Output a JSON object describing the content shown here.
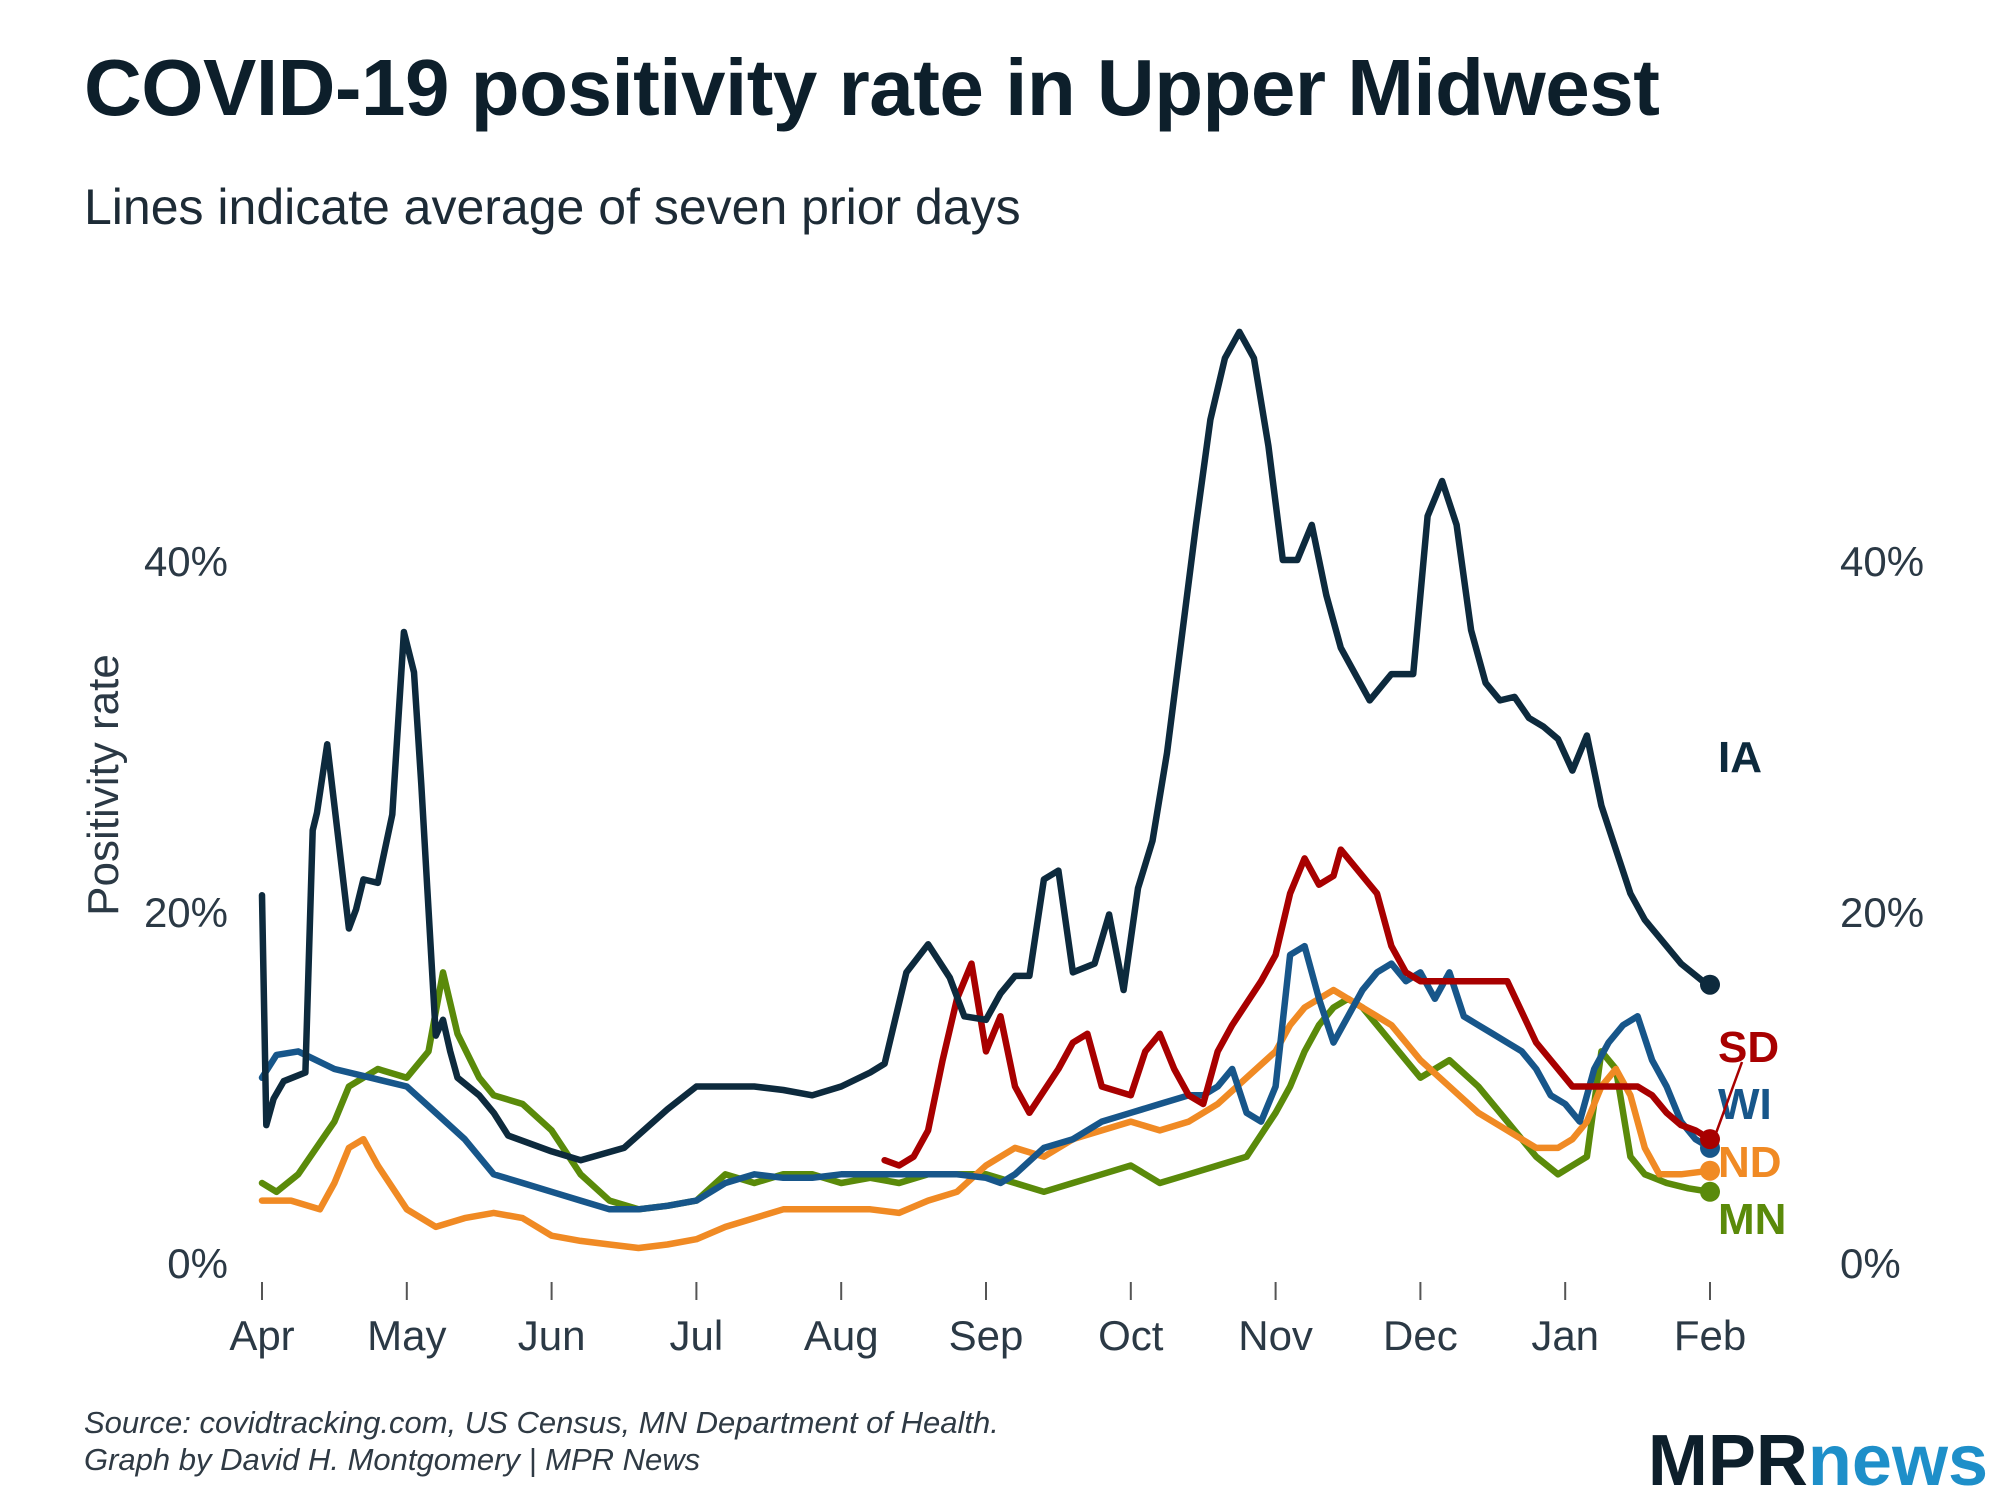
{
  "title": "COVID-19 positivity rate in Upper Midwest",
  "subtitle": "Lines indicate average of seven prior days",
  "source_line1": "Source: covidtracking.com, US Census, MN Department of Health.",
  "source_line2": "Graph by David H. Montgomery | MPR News",
  "logo": {
    "mpr": "MPR",
    "news": "news"
  },
  "chart_data": {
    "type": "line",
    "title": "COVID-19 positivity rate in Upper Midwest",
    "subtitle": "Lines indicate average of seven prior days",
    "xlabel": "",
    "ylabel": "Positivity rate",
    "x_tick_labels": [
      "Apr",
      "May",
      "Jun",
      "Jul",
      "Aug",
      "Sep",
      "Oct",
      "Nov",
      "Dec",
      "Jan",
      "Feb"
    ],
    "x_tick_positions": [
      0,
      1,
      2,
      3,
      4,
      5,
      6,
      7,
      8,
      9,
      10
    ],
    "y_ticks": [
      0,
      20,
      40
    ],
    "y_tick_labels": [
      "0%",
      "20%",
      "40%"
    ],
    "ylim": [
      -2,
      53
    ],
    "x_unit_note": "x values are months since Apr 1 (0 = Apr, 10 = Feb)",
    "grid": false,
    "legend": "direct labels at line ends (right)",
    "series": [
      {
        "name": "IA",
        "color": "#0d2a3d",
        "x": [
          0,
          0.03,
          0.08,
          0.15,
          0.3,
          0.35,
          0.38,
          0.45,
          0.6,
          0.65,
          0.7,
          0.8,
          0.9,
          0.98,
          1.05,
          1.1,
          1.2,
          1.25,
          1.3,
          1.35,
          1.5,
          1.6,
          1.7,
          2.0,
          2.2,
          2.5,
          2.8,
          3.0,
          3.2,
          3.4,
          3.6,
          3.8,
          4.0,
          4.2,
          4.3,
          4.45,
          4.6,
          4.75,
          4.85,
          5.0,
          5.1,
          5.2,
          5.3,
          5.4,
          5.5,
          5.6,
          5.75,
          5.85,
          5.95,
          6.05,
          6.15,
          6.25,
          6.35,
          6.45,
          6.55,
          6.65,
          6.75,
          6.85,
          6.95,
          7.05,
          7.15,
          7.25,
          7.35,
          7.45,
          7.55,
          7.65,
          7.8,
          7.95,
          8.0,
          8.05,
          8.15,
          8.25,
          8.35,
          8.45,
          8.55,
          8.65,
          8.75,
          8.85,
          8.95,
          9.05,
          9.15,
          9.25,
          9.35,
          9.45,
          9.55,
          9.65,
          9.8,
          9.95,
          10.0
        ],
        "y": [
          20.9,
          7.8,
          9.3,
          10.3,
          10.8,
          24.6,
          25.6,
          29.5,
          19.0,
          20.1,
          21.8,
          21.6,
          25.5,
          35.9,
          33.6,
          27.2,
          12.9,
          13.8,
          12.0,
          10.5,
          9.5,
          8.5,
          7.2,
          6.3,
          5.8,
          6.5,
          8.7,
          10.0,
          10.0,
          10.0,
          9.8,
          9.5,
          10.0,
          10.8,
          11.3,
          16.5,
          18.1,
          16.2,
          14.0,
          13.8,
          15.3,
          16.3,
          16.3,
          21.8,
          22.3,
          16.5,
          17.0,
          19.8,
          15.5,
          21.3,
          24.0,
          29.0,
          35.5,
          42.0,
          48.0,
          51.5,
          53.0,
          51.5,
          46.5,
          40.0,
          40.0,
          42.0,
          38.0,
          35.0,
          33.5,
          32.0,
          33.5,
          33.5,
          38.0,
          42.5,
          44.5,
          42.0,
          36.0,
          33.0,
          32.0,
          32.2,
          31.0,
          30.5,
          29.8,
          28.0,
          30.0,
          26.0,
          23.5,
          21.0,
          19.5,
          18.5,
          17.0,
          16.0,
          15.8
        ],
        "end_label": "IA"
      },
      {
        "name": "SD",
        "color": "#a80000",
        "x": [
          4.3,
          4.4,
          4.5,
          4.6,
          4.7,
          4.8,
          4.9,
          5.0,
          5.1,
          5.2,
          5.3,
          5.5,
          5.6,
          5.7,
          5.8,
          6.0,
          6.1,
          6.2,
          6.3,
          6.4,
          6.5,
          6.6,
          6.7,
          6.9,
          7.0,
          7.1,
          7.2,
          7.3,
          7.4,
          7.45,
          7.55,
          7.65,
          7.7,
          7.8,
          7.9,
          8.0,
          8.2,
          8.4,
          8.6,
          8.8,
          8.95,
          9.05,
          9.25,
          9.4,
          9.5,
          9.6,
          9.7,
          9.8,
          9.9,
          10.0
        ],
        "y": [
          5.8,
          5.5,
          6.0,
          7.5,
          11.5,
          15.0,
          17.0,
          12.0,
          14.0,
          10.0,
          8.5,
          11.0,
          12.5,
          13.0,
          10.0,
          9.5,
          12.0,
          13.0,
          11.0,
          9.5,
          9.0,
          12.0,
          13.5,
          16.0,
          17.5,
          21.0,
          23.0,
          21.5,
          22.0,
          23.5,
          22.5,
          21.5,
          21.0,
          18.0,
          16.5,
          16.0,
          16.0,
          16.0,
          16.0,
          12.5,
          11.0,
          10.0,
          10.0,
          10.0,
          10.0,
          9.5,
          8.5,
          7.8,
          7.5,
          7.0
        ],
        "end_label": "SD"
      },
      {
        "name": "WI",
        "color": "#17568a",
        "x": [
          0,
          0.1,
          0.25,
          0.5,
          0.75,
          1.0,
          1.2,
          1.4,
          1.6,
          1.8,
          2.0,
          2.2,
          2.4,
          2.6,
          2.8,
          3.0,
          3.2,
          3.4,
          3.6,
          3.8,
          4.0,
          4.2,
          4.4,
          4.6,
          4.8,
          5.0,
          5.1,
          5.2,
          5.4,
          5.6,
          5.8,
          6.0,
          6.2,
          6.4,
          6.5,
          6.6,
          6.7,
          6.8,
          6.9,
          7.0,
          7.1,
          7.2,
          7.3,
          7.4,
          7.5,
          7.6,
          7.7,
          7.8,
          7.9,
          8.0,
          8.1,
          8.2,
          8.3,
          8.4,
          8.5,
          8.6,
          8.7,
          8.8,
          8.9,
          9.0,
          9.1,
          9.2,
          9.3,
          9.4,
          9.5,
          9.6,
          9.7,
          9.8,
          9.9,
          10.0
        ],
        "y": [
          10.5,
          11.8,
          12.0,
          11.0,
          10.5,
          10.0,
          8.5,
          7.0,
          5.0,
          4.5,
          4.0,
          3.5,
          3.0,
          3.0,
          3.2,
          3.5,
          4.5,
          5.0,
          4.8,
          4.8,
          5.0,
          5.0,
          5.0,
          5.0,
          5.0,
          4.8,
          4.5,
          5.0,
          6.5,
          7.0,
          8.0,
          8.5,
          9.0,
          9.5,
          9.5,
          10.0,
          11.0,
          8.5,
          8.0,
          10.0,
          17.5,
          18.0,
          15.0,
          12.5,
          14.0,
          15.5,
          16.5,
          17.0,
          16.0,
          16.5,
          15.0,
          16.5,
          14.0,
          13.5,
          13.0,
          12.5,
          12.0,
          11.0,
          9.5,
          9.0,
          8.0,
          11.0,
          12.5,
          13.5,
          14.0,
          11.5,
          10.0,
          8.0,
          7.0,
          6.5
        ],
        "end_label": "WI"
      },
      {
        "name": "ND",
        "color": "#f08a24",
        "x": [
          0,
          0.2,
          0.4,
          0.5,
          0.6,
          0.7,
          0.8,
          1.0,
          1.2,
          1.4,
          1.6,
          1.8,
          2.0,
          2.2,
          2.4,
          2.6,
          2.8,
          3.0,
          3.2,
          3.4,
          3.6,
          3.8,
          4.0,
          4.2,
          4.4,
          4.6,
          4.8,
          5.0,
          5.2,
          5.4,
          5.6,
          5.8,
          6.0,
          6.2,
          6.4,
          6.6,
          6.8,
          7.0,
          7.1,
          7.2,
          7.3,
          7.4,
          7.5,
          7.6,
          7.7,
          7.8,
          7.9,
          8.0,
          8.2,
          8.4,
          8.6,
          8.8,
          8.95,
          9.05,
          9.15,
          9.25,
          9.35,
          9.45,
          9.55,
          9.65,
          9.8,
          10.0
        ],
        "y": [
          3.5,
          3.5,
          3.0,
          4.5,
          6.5,
          7.0,
          5.5,
          3.0,
          2.0,
          2.5,
          2.8,
          2.5,
          1.5,
          1.2,
          1.0,
          0.8,
          1.0,
          1.3,
          2.0,
          2.5,
          3.0,
          3.0,
          3.0,
          3.0,
          2.8,
          3.5,
          4.0,
          5.5,
          6.5,
          6.0,
          7.0,
          7.5,
          8.0,
          7.5,
          8.0,
          9.0,
          10.5,
          12.0,
          13.5,
          14.5,
          15.0,
          15.5,
          15.0,
          14.5,
          14.0,
          13.5,
          12.5,
          11.5,
          10.0,
          8.5,
          7.5,
          6.5,
          6.5,
          7.0,
          8.0,
          10.0,
          11.0,
          9.5,
          6.5,
          5.0,
          5.0,
          5.2
        ],
        "end_label": "ND"
      },
      {
        "name": "MN",
        "color": "#5a8a0a",
        "x": [
          0,
          0.1,
          0.25,
          0.5,
          0.6,
          0.8,
          1.0,
          1.15,
          1.25,
          1.35,
          1.5,
          1.6,
          1.8,
          2.0,
          2.2,
          2.4,
          2.6,
          2.8,
          3.0,
          3.2,
          3.4,
          3.6,
          3.8,
          4.0,
          4.2,
          4.4,
          4.6,
          4.8,
          5.0,
          5.2,
          5.4,
          5.6,
          5.8,
          6.0,
          6.2,
          6.4,
          6.6,
          6.8,
          7.0,
          7.1,
          7.2,
          7.3,
          7.4,
          7.5,
          7.6,
          7.7,
          7.8,
          7.9,
          8.0,
          8.2,
          8.4,
          8.6,
          8.8,
          8.95,
          9.05,
          9.15,
          9.25,
          9.35,
          9.45,
          9.55,
          9.7,
          9.85,
          10.0
        ],
        "y": [
          4.5,
          4.0,
          5.0,
          8.0,
          10.0,
          11.0,
          10.5,
          12.0,
          16.5,
          13.0,
          10.5,
          9.5,
          9.0,
          7.5,
          5.0,
          3.5,
          3.0,
          3.2,
          3.5,
          5.0,
          4.5,
          5.0,
          5.0,
          4.5,
          4.8,
          4.5,
          5.0,
          5.0,
          5.0,
          4.5,
          4.0,
          4.5,
          5.0,
          5.5,
          4.5,
          5.0,
          5.5,
          6.0,
          8.5,
          10.0,
          12.0,
          13.5,
          14.5,
          15.0,
          14.5,
          13.5,
          12.5,
          11.5,
          10.5,
          11.5,
          10.0,
          8.0,
          6.0,
          5.0,
          5.5,
          6.0,
          12.0,
          11.0,
          6.0,
          5.0,
          4.5,
          4.2,
          4.0
        ],
        "end_label": "MN"
      }
    ]
  }
}
